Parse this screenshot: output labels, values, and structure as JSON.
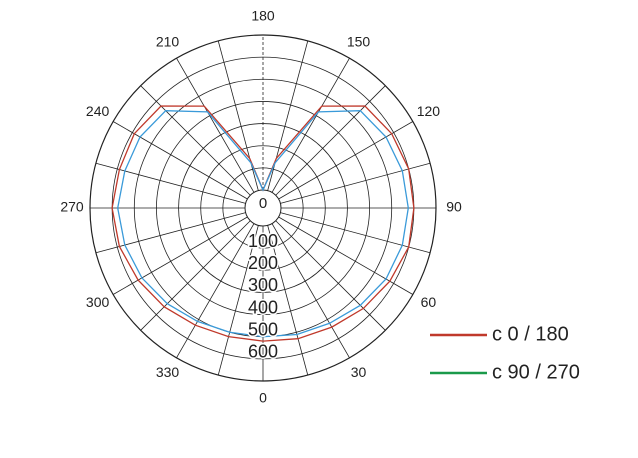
{
  "chart_data": {
    "type": "polar",
    "theta": [
      0,
      15,
      30,
      45,
      60,
      75,
      90,
      105,
      120,
      135,
      150,
      165,
      180,
      195,
      210,
      225,
      240,
      255,
      270,
      285,
      300,
      315,
      330,
      345,
      360
    ],
    "series": [
      {
        "name": "c 0 / 180",
        "color": "#c0392b",
        "legend_color": "#c0392b",
        "values": [
          520,
          530,
          540,
          560,
          580,
          600,
          600,
          600,
          590,
          570,
          450,
          150,
          0,
          150,
          450,
          570,
          590,
          590,
          600,
          590,
          570,
          550,
          530,
          520,
          520
        ]
      },
      {
        "name": "c 90 / 270",
        "color": "#3a9ad9",
        "legend_color": "#1a9a4a",
        "values": [
          500,
          510,
          520,
          540,
          560,
          570,
          575,
          570,
          560,
          540,
          420,
          130,
          0,
          130,
          420,
          540,
          560,
          565,
          575,
          565,
          550,
          530,
          510,
          500,
          500
        ]
      }
    ],
    "rlim": [
      0,
      700
    ],
    "rticks": [
      0,
      100,
      200,
      300,
      400,
      500,
      600
    ],
    "thetaticks": [
      0,
      30,
      60,
      90,
      120,
      150,
      180,
      210,
      240,
      270,
      300,
      330
    ]
  }
}
